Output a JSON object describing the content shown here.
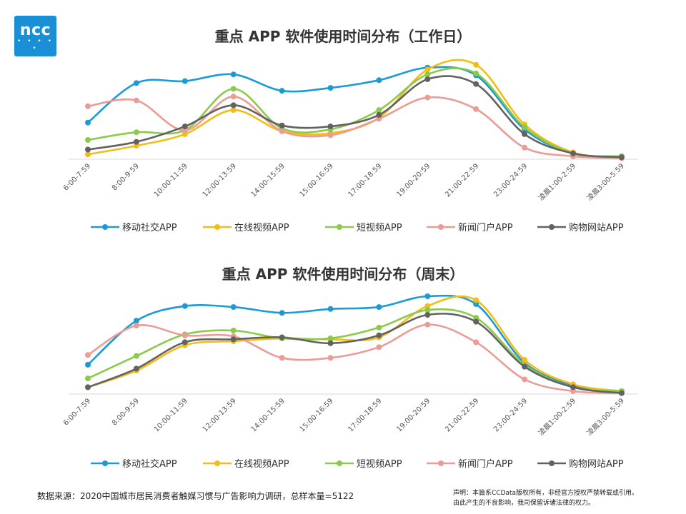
{
  "logo": {
    "text": "ncc",
    "dots": "• • • • •"
  },
  "chart_data": [
    {
      "type": "line",
      "title": "重点 APP 软件使用时间分布（工作日）",
      "categories": [
        "6:00-7:59",
        "8:00-9:59",
        "10:00-11:59",
        "12:00-13:59",
        "14:00-15:59",
        "15:00-16:59",
        "17:00-18:59",
        "19:00-20:59",
        "21:00-22:59",
        "23:00-24:59",
        "凌晨1:00-2:59",
        "凌晨3:00-5:59"
      ],
      "ylim": [
        0,
        100
      ],
      "grid": false,
      "legend_position": "bottom",
      "series": [
        {
          "name": "移动社交APP",
          "color": "#1a9ad6",
          "values": [
            38,
            79,
            81,
            88,
            71,
            74,
            82,
            95,
            87,
            31,
            6,
            3
          ]
        },
        {
          "name": "在线视频APP",
          "color": "#f5bc16",
          "values": [
            5,
            14,
            26,
            51,
            29,
            27,
            43,
            93,
            98,
            36,
            7,
            2
          ]
        },
        {
          "name": "短视频APP",
          "color": "#8cca4a",
          "values": [
            20,
            28,
            30,
            73,
            32,
            31,
            51,
            88,
            89,
            33,
            6,
            3
          ]
        },
        {
          "name": "新闻门户APP",
          "color": "#ea9c95",
          "values": [
            55,
            61,
            30,
            65,
            29,
            25,
            42,
            64,
            52,
            12,
            3,
            1
          ]
        },
        {
          "name": "购物网站APP",
          "color": "#626262",
          "values": [
            10,
            18,
            34,
            56,
            35,
            34,
            46,
            83,
            78,
            26,
            6,
            2
          ]
        }
      ]
    },
    {
      "type": "line",
      "title": "重点 APP 软件使用时间分布（周末）",
      "categories": [
        "6:00-7:59",
        "8:00-9:59",
        "10:00-11:59",
        "12:00-13:59",
        "14:00-15:59",
        "15:00-16:59",
        "17:00-18:59",
        "19:00-20:59",
        "21:00-22:59",
        "23:00-24:59",
        "凌晨1:00-2:59",
        "凌晨3:00-5:59"
      ],
      "ylim": [
        0,
        100
      ],
      "grid": false,
      "legend_position": "bottom",
      "series": [
        {
          "name": "移动社交APP",
          "color": "#1a9ad6",
          "values": [
            30,
            75,
            90,
            89,
            83,
            87,
            89,
            100,
            92,
            32,
            9,
            3
          ]
        },
        {
          "name": "在线视频APP",
          "color": "#f5bc16",
          "values": [
            7,
            24,
            50,
            54,
            57,
            56,
            58,
            90,
            96,
            35,
            10,
            3
          ]
        },
        {
          "name": "短视频APP",
          "color": "#8cca4a",
          "values": [
            16,
            39,
            61,
            65,
            57,
            57,
            68,
            86,
            78,
            30,
            7,
            3
          ]
        },
        {
          "name": "新闻门户APP",
          "color": "#ea9c95",
          "values": [
            40,
            70,
            60,
            59,
            37,
            37,
            48,
            71,
            53,
            15,
            3,
            1
          ]
        },
        {
          "name": "购物网站APP",
          "color": "#626262",
          "values": [
            7,
            26,
            53,
            56,
            58,
            52,
            60,
            81,
            74,
            28,
            7,
            1
          ]
        }
      ]
    }
  ],
  "footer": {
    "source": "数据来源：2020中国城市居民消费者触媒习惯与广告影响力调研，总样本量=5122",
    "disclaimer_line1": "声明：本篇系CCData版权所有，非经官方授权严禁转载或引用。",
    "disclaimer_line2": "由此产生的不良影响，我司保留诉诸法律的权力。"
  }
}
